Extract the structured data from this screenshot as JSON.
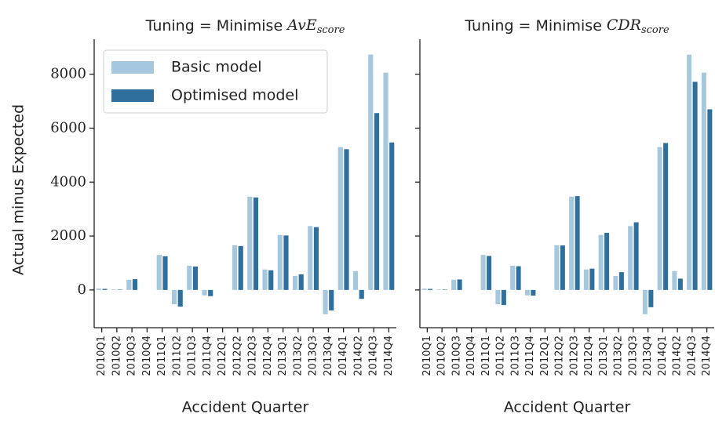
{
  "chart_data": [
    {
      "type": "bar",
      "title": {
        "text": "Tuning = Minimise",
        "math": "AvE",
        "subscript": "score"
      },
      "xlabel": "Accident Quarter",
      "ylabel": "Actual minus Expected",
      "categories": [
        "2010Q1",
        "2010Q2",
        "2010Q3",
        "2010Q4",
        "2011Q1",
        "2011Q2",
        "2011Q3",
        "2011Q4",
        "2012Q1",
        "2012Q2",
        "2012Q3",
        "2012Q4",
        "2013Q1",
        "2013Q2",
        "2013Q3",
        "2013Q4",
        "2014Q1",
        "2014Q2",
        "2014Q3",
        "2014Q4"
      ],
      "series": [
        {
          "name": "Basic model",
          "color": "#a6c8de",
          "values": [
            50,
            20,
            380,
            0,
            1300,
            -530,
            900,
            -200,
            0,
            1660,
            3460,
            760,
            2040,
            520,
            2370,
            -900,
            5300,
            700,
            8730,
            8060
          ]
        },
        {
          "name": "Optimised model",
          "color": "#2e6f9e",
          "values": [
            40,
            15,
            400,
            0,
            1250,
            -620,
            870,
            -230,
            0,
            1630,
            3430,
            730,
            2020,
            580,
            2330,
            -760,
            5220,
            -330,
            6560,
            5470
          ]
        }
      ],
      "ylim": [
        -1400,
        9300
      ],
      "yticks": [
        0,
        2000,
        4000,
        6000,
        8000
      ],
      "ytick_labels": true,
      "legend": "upper left"
    },
    {
      "type": "bar",
      "title": {
        "text": "Tuning = Minimise",
        "math": "CDR",
        "subscript": "score"
      },
      "xlabel": "Accident Quarter",
      "categories": [
        "2010Q1",
        "2010Q2",
        "2010Q3",
        "2010Q4",
        "2011Q1",
        "2011Q2",
        "2011Q3",
        "2011Q4",
        "2012Q1",
        "2012Q2",
        "2012Q3",
        "2012Q4",
        "2013Q1",
        "2013Q2",
        "2013Q3",
        "2013Q4",
        "2014Q1",
        "2014Q2",
        "2014Q3",
        "2014Q4"
      ],
      "series": [
        {
          "name": "Basic model",
          "color": "#a6c8de",
          "values": [
            50,
            20,
            380,
            0,
            1300,
            -530,
            900,
            -200,
            0,
            1660,
            3460,
            760,
            2040,
            520,
            2370,
            -900,
            5300,
            700,
            8730,
            8060
          ]
        },
        {
          "name": "Optimised model",
          "color": "#2e6f9e",
          "values": [
            40,
            15,
            390,
            0,
            1260,
            -560,
            880,
            -210,
            0,
            1650,
            3480,
            790,
            2120,
            660,
            2510,
            -640,
            5450,
            420,
            7720,
            6700
          ]
        }
      ],
      "ylim": [
        -1400,
        9300
      ],
      "yticks": [
        0,
        2000,
        4000,
        6000,
        8000
      ],
      "ytick_labels": false,
      "legend": "none"
    }
  ]
}
